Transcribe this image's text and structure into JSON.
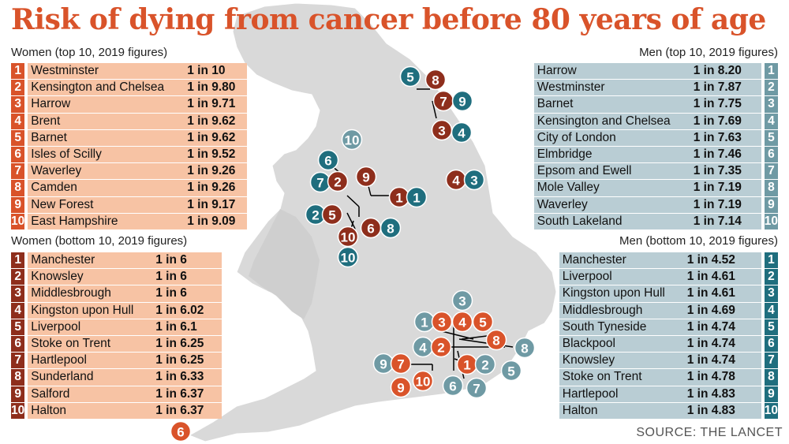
{
  "title": "Risk of dying from cancer before 80 years of age",
  "source": "SOURCE: THE LANCET",
  "women_top": {
    "heading": "Women (top 10, 2019 figures)",
    "rows": [
      {
        "rank": "1",
        "place": "Westminster",
        "risk": "1 in 10"
      },
      {
        "rank": "2",
        "place": "Kensington and Chelsea",
        "risk": "1 in 9.80"
      },
      {
        "rank": "3",
        "place": "Harrow",
        "risk": "1 in 9.71"
      },
      {
        "rank": "4",
        "place": "Brent",
        "risk": "1 in 9.62"
      },
      {
        "rank": "5",
        "place": "Barnet",
        "risk": "1 in 9.62"
      },
      {
        "rank": "6",
        "place": "Isles of Scilly",
        "risk": "1 in 9.52"
      },
      {
        "rank": "7",
        "place": "Waverley",
        "risk": "1 in 9.26"
      },
      {
        "rank": "8",
        "place": "Camden",
        "risk": "1 in 9.26"
      },
      {
        "rank": "9",
        "place": "New Forest",
        "risk": "1 in 9.17"
      },
      {
        "rank": "10",
        "place": "East Hampshire",
        "risk": "1 in 9.09"
      }
    ]
  },
  "women_bottom": {
    "heading": "Women (bottom 10, 2019 figures)",
    "rows": [
      {
        "rank": "1",
        "place": "Manchester",
        "risk": "1 in 6"
      },
      {
        "rank": "2",
        "place": "Knowsley",
        "risk": "1 in 6"
      },
      {
        "rank": "3",
        "place": "Middlesbrough",
        "risk": "1 in 6"
      },
      {
        "rank": "4",
        "place": "Kingston upon Hull",
        "risk": "1 in 6.02"
      },
      {
        "rank": "5",
        "place": "Liverpool",
        "risk": "1 in 6.1"
      },
      {
        "rank": "6",
        "place": "Stoke on Trent",
        "risk": "1 in 6.25"
      },
      {
        "rank": "7",
        "place": "Hartlepool",
        "risk": "1 in 6.25"
      },
      {
        "rank": "8",
        "place": "Sunderland",
        "risk": "1 in 6.33"
      },
      {
        "rank": "9",
        "place": "Salford",
        "risk": "1 in 6.37"
      },
      {
        "rank": "10",
        "place": "Halton",
        "risk": "1 in 6.37"
      }
    ]
  },
  "men_top": {
    "heading": "Men (top 10, 2019 figures)",
    "rows": [
      {
        "rank": "1",
        "place": "Harrow",
        "risk": "1 in 8.20"
      },
      {
        "rank": "2",
        "place": "Westminster",
        "risk": "1 in 7.87"
      },
      {
        "rank": "3",
        "place": "Barnet",
        "risk": "1 in 7.75"
      },
      {
        "rank": "4",
        "place": "Kensington and Chelsea",
        "risk": "1 in 7.69"
      },
      {
        "rank": "5",
        "place": "City of London",
        "risk": "1 in 7.63"
      },
      {
        "rank": "6",
        "place": "Elmbridge",
        "risk": "1 in 7.46"
      },
      {
        "rank": "7",
        "place": "Epsom and Ewell",
        "risk": "1 in 7.35"
      },
      {
        "rank": "8",
        "place": "Mole Valley",
        "risk": "1 in 7.19"
      },
      {
        "rank": "9",
        "place": "Waverley",
        "risk": "1 in 7.19"
      },
      {
        "rank": "10",
        "place": "South Lakeland",
        "risk": "1 in 7.14"
      }
    ]
  },
  "men_bottom": {
    "heading": "Men (bottom 10, 2019 figures)",
    "rows": [
      {
        "rank": "1",
        "place": "Manchester",
        "risk": "1 in 4.52"
      },
      {
        "rank": "2",
        "place": "Liverpool",
        "risk": "1 in 4.61"
      },
      {
        "rank": "3",
        "place": "Kingston upon Hull",
        "risk": "1 in 4.61"
      },
      {
        "rank": "4",
        "place": "Middlesbrough",
        "risk": "1 in 4.69"
      },
      {
        "rank": "5",
        "place": "South Tyneside",
        "risk": "1 in 4.74"
      },
      {
        "rank": "6",
        "place": "Blackpool",
        "risk": "1 in 4.74"
      },
      {
        "rank": "7",
        "place": "Knowsley",
        "risk": "1 in 4.74"
      },
      {
        "rank": "8",
        "place": "Stoke on Trent",
        "risk": "1 in 4.78"
      },
      {
        "rank": "9",
        "place": "Hartlepool",
        "risk": "1 in 4.83"
      },
      {
        "rank": "10",
        "place": "Halton",
        "risk": "1 in 4.83"
      }
    ]
  },
  "colors": {
    "women_top": "#d9532a",
    "women_bottom": "#8e2e1c",
    "men_top": "#6f9aa4",
    "men_bottom": "#1f6e7e",
    "map_land": "#d9d9d9",
    "title": "#d9532a"
  },
  "map_markers": [
    {
      "label": "10",
      "group": "men_top",
      "place": "South Lakeland"
    },
    {
      "label": "5",
      "group": "men_bottom",
      "place": "South Tyneside"
    },
    {
      "label": "8",
      "group": "women_bottom",
      "place": "Sunderland"
    },
    {
      "label": "7",
      "group": "women_bottom",
      "place": "Hartlepool"
    },
    {
      "label": "9",
      "group": "men_bottom",
      "place": "Hartlepool"
    },
    {
      "label": "3",
      "group": "women_bottom",
      "place": "Middlesbrough"
    },
    {
      "label": "4",
      "group": "men_bottom",
      "place": "Middlesbrough"
    },
    {
      "label": "4",
      "group": "women_bottom",
      "place": "Kingston upon Hull"
    },
    {
      "label": "3",
      "group": "men_bottom",
      "place": "Kingston upon Hull"
    },
    {
      "label": "6",
      "group": "men_bottom",
      "place": "Blackpool"
    },
    {
      "label": "7",
      "group": "men_bottom",
      "place": "Knowsley"
    },
    {
      "label": "2",
      "group": "women_bottom",
      "place": "Knowsley"
    },
    {
      "label": "9",
      "group": "women_bottom",
      "place": "Salford"
    },
    {
      "label": "1",
      "group": "women_bottom",
      "place": "Manchester"
    },
    {
      "label": "1",
      "group": "men_bottom",
      "place": "Manchester"
    },
    {
      "label": "2",
      "group": "men_bottom",
      "place": "Liverpool"
    },
    {
      "label": "5",
      "group": "women_bottom",
      "place": "Liverpool"
    },
    {
      "label": "6",
      "group": "women_bottom",
      "place": "Stoke on Trent"
    },
    {
      "label": "8",
      "group": "men_bottom",
      "place": "Stoke on Trent"
    },
    {
      "label": "10",
      "group": "women_bottom",
      "place": "Halton"
    },
    {
      "label": "10",
      "group": "men_bottom",
      "place": "Halton"
    },
    {
      "label": "3",
      "group": "men_top",
      "place": "Barnet"
    },
    {
      "label": "1",
      "group": "men_top",
      "place": "Harrow"
    },
    {
      "label": "3",
      "group": "women_top",
      "place": "Harrow"
    },
    {
      "label": "4",
      "group": "women_top",
      "place": "Brent"
    },
    {
      "label": "5",
      "group": "women_top",
      "place": "Barnet"
    },
    {
      "label": "8",
      "group": "women_top",
      "place": "Camden"
    },
    {
      "label": "8",
      "group": "men_top",
      "place": "Mole Valley"
    },
    {
      "label": "4",
      "group": "men_top",
      "place": "Kensington and Chelsea"
    },
    {
      "label": "2",
      "group": "women_top",
      "place": "Kensington and Chelsea"
    },
    {
      "label": "1",
      "group": "women_top",
      "place": "Westminster"
    },
    {
      "label": "2",
      "group": "men_top",
      "place": "Westminster"
    },
    {
      "label": "5",
      "group": "men_top",
      "place": "City of London"
    },
    {
      "label": "9",
      "group": "men_top",
      "place": "Waverley"
    },
    {
      "label": "7",
      "group": "women_top",
      "place": "Waverley"
    },
    {
      "label": "10",
      "group": "women_top",
      "place": "East Hampshire"
    },
    {
      "label": "9",
      "group": "women_top",
      "place": "New Forest"
    },
    {
      "label": "6",
      "group": "men_top",
      "place": "Elmbridge"
    },
    {
      "label": "7",
      "group": "men_top",
      "place": "Epsom and Ewell"
    },
    {
      "label": "6",
      "group": "women_top",
      "place": "Isles of Scilly"
    }
  ]
}
